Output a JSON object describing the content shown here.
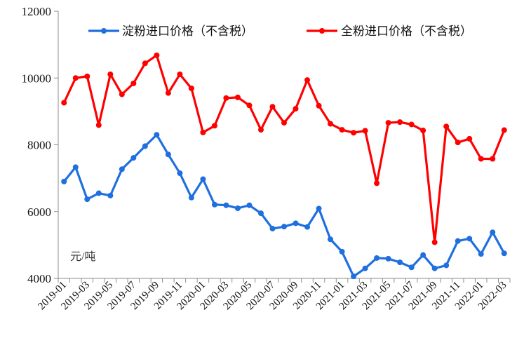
{
  "chart_data": {
    "type": "line",
    "title": "",
    "xlabel": "",
    "ylabel": "元/吨",
    "ylim": [
      4000,
      12000
    ],
    "yticks": [
      4000,
      6000,
      8000,
      10000,
      12000
    ],
    "grid": false,
    "legend_position": "top",
    "x": [
      "2019-01",
      "2019-02",
      "2019-03",
      "2019-04",
      "2019-05",
      "2019-06",
      "2019-07",
      "2019-08",
      "2019-09",
      "2019-10",
      "2019-11",
      "2019-12",
      "2020-01",
      "2020-02",
      "2020-03",
      "2020-04",
      "2020-05",
      "2020-06",
      "2020-07",
      "2020-08",
      "2020-09",
      "2020-10",
      "2020-11",
      "2020-12",
      "2021-01",
      "2021-02",
      "2021-03",
      "2021-04",
      "2021-05",
      "2021-06",
      "2021-07",
      "2021-08",
      "2021-09",
      "2021-10",
      "2021-11",
      "2021-12",
      "2022-01",
      "2022-02",
      "2022-03"
    ],
    "x_tick_labels": [
      "2019-01",
      "2019-03",
      "2019-05",
      "2019-07",
      "2019-09",
      "2019-11",
      "2020-01",
      "2020-03",
      "2020-05",
      "2020-07",
      "2020-09",
      "2020-11",
      "2021-01",
      "2021-03",
      "2021-05",
      "2021-07",
      "2021-09",
      "2021-11",
      "2022-01",
      "2022-03"
    ],
    "series": [
      {
        "name": "淀粉进口价格（不含税）",
        "color": "#1f6fe0",
        "values": [
          6900,
          7330,
          6370,
          6550,
          6480,
          7270,
          7610,
          7960,
          8300,
          7710,
          7150,
          6420,
          6970,
          6210,
          6190,
          6100,
          6190,
          5950,
          5490,
          5550,
          5650,
          5540,
          6090,
          5170,
          4800,
          4060,
          4300,
          4610,
          4590,
          4480,
          4330,
          4700,
          4300,
          4390,
          5120,
          5190,
          4730,
          5380,
          4750
        ]
      },
      {
        "name": "全粉进口价格（不含税）",
        "color": "#ff0000",
        "values": [
          9260,
          10000,
          10050,
          8590,
          10110,
          9510,
          9840,
          10440,
          10680,
          9550,
          10110,
          9690,
          8370,
          8570,
          9400,
          9420,
          9180,
          8450,
          9140,
          8660,
          9080,
          9940,
          9170,
          8630,
          8450,
          8360,
          8420,
          6850,
          8660,
          8680,
          8610,
          8430,
          5080,
          8550,
          8070,
          8180,
          7580,
          7580,
          8440
        ]
      }
    ]
  }
}
